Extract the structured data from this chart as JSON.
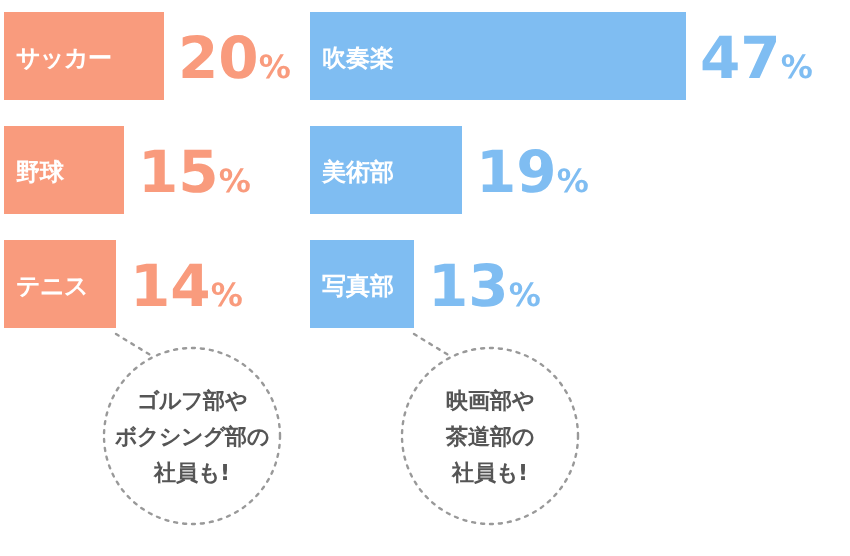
{
  "chart_data": [
    {
      "type": "bar",
      "orientation": "horizontal",
      "categories": [
        "サッカー",
        "野球",
        "テニス"
      ],
      "values": [
        20,
        15,
        14
      ],
      "value_labels": [
        "20%",
        "15%",
        "14%"
      ],
      "color": "#f99b7d",
      "annotations": [
        {
          "text": "ゴルフ部やボクシング部の社員も!",
          "x": 14,
          "y": "テニス"
        }
      ]
    },
    {
      "type": "bar",
      "orientation": "horizontal",
      "categories": [
        "吹奏楽",
        "美術部",
        "写真部"
      ],
      "values": [
        47,
        19,
        13
      ],
      "value_labels": [
        "47%",
        "19%",
        "13%"
      ],
      "color": "#7fbdf2",
      "annotations": [
        {
          "text": "映画部や茶道部の社員も!",
          "x": 13,
          "y": "写真部"
        }
      ]
    }
  ]
}
